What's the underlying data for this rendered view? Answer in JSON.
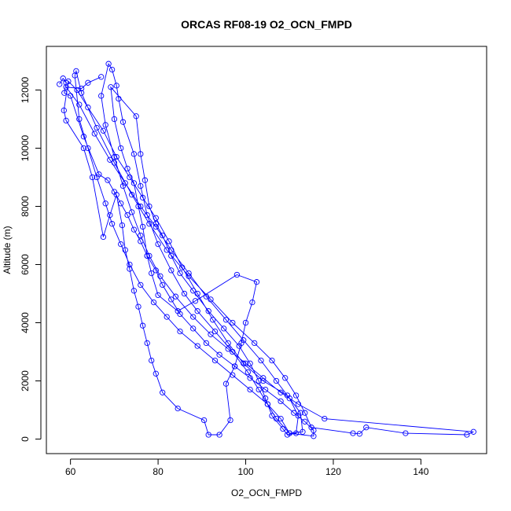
{
  "chart_data": {
    "type": "line",
    "title": "ORCAS RF08-19 O2_OCN_FMPD",
    "xlabel": "O2_OCN_FMPD",
    "ylabel": "Altitude (m)",
    "xlim": [
      54.5,
      155
    ],
    "ylim": [
      -500,
      13500
    ],
    "xticks": [
      60,
      80,
      100,
      120,
      140
    ],
    "yticks": [
      0,
      2000,
      4000,
      6000,
      8000,
      10000,
      12000
    ],
    "grid": false,
    "legend": "none",
    "series_color": "#0000ff",
    "series": [
      {
        "marker": "open-circle",
        "points": [
          [
            57.5,
            12200
          ],
          [
            58.3,
            12400
          ],
          [
            59.0,
            12250
          ],
          [
            58.6,
            11900
          ],
          [
            60.0,
            11800
          ],
          [
            63.0,
            10400
          ],
          [
            66.5,
            9100
          ],
          [
            68.5,
            8900
          ],
          [
            70.0,
            8500
          ],
          [
            71.5,
            8100
          ],
          [
            73.0,
            7700
          ],
          [
            74.5,
            7200
          ],
          [
            76.0,
            6800
          ],
          [
            77.5,
            6300
          ],
          [
            79.5,
            5800
          ],
          [
            81.0,
            5300
          ],
          [
            83.0,
            4800
          ],
          [
            85.0,
            4300
          ],
          [
            88.0,
            3800
          ],
          [
            91.0,
            3300
          ],
          [
            94.0,
            2900
          ],
          [
            97.5,
            2500
          ],
          [
            101.0,
            2100
          ],
          [
            104.5,
            1700
          ],
          [
            108.0,
            1300
          ],
          [
            111.0,
            900
          ],
          [
            113.5,
            600
          ],
          [
            115.5,
            300
          ],
          [
            115.5,
            100
          ],
          [
            110.0,
            200
          ],
          [
            108.0,
            700
          ],
          [
            105.0,
            1200
          ],
          [
            101.0,
            1700
          ],
          [
            97.0,
            2200
          ],
          [
            93.0,
            2700
          ],
          [
            89.0,
            3200
          ],
          [
            85.0,
            3700
          ],
          [
            82.0,
            4200
          ],
          [
            79.0,
            4700
          ],
          [
            76.0,
            5300
          ],
          [
            73.5,
            6000
          ],
          [
            71.5,
            6700
          ],
          [
            69.5,
            7400
          ],
          [
            68.0,
            8100
          ],
          [
            66.0,
            9000
          ],
          [
            64.0,
            10000
          ],
          [
            62.0,
            11000
          ],
          [
            61.0,
            12500
          ],
          [
            61.3,
            12650
          ],
          [
            62.5,
            11900
          ],
          [
            66.0,
            10700
          ],
          [
            70.0,
            9500
          ],
          [
            74.0,
            8400
          ],
          [
            78.0,
            7400
          ],
          [
            82.0,
            6500
          ],
          [
            87.0,
            5600
          ],
          [
            92.0,
            4800
          ],
          [
            97.0,
            4000
          ],
          [
            102.0,
            3300
          ],
          [
            106.0,
            2700
          ],
          [
            109.0,
            2100
          ],
          [
            111.5,
            1500
          ],
          [
            113.5,
            900
          ],
          [
            115.0,
            400
          ],
          [
            124.5,
            200
          ],
          [
            126.0,
            180
          ],
          [
            127.5,
            400
          ],
          [
            136.5,
            200
          ],
          [
            150.5,
            150
          ],
          [
            152.0,
            250
          ],
          [
            118.0,
            700
          ],
          [
            112.0,
            1200
          ],
          [
            108.0,
            1600
          ],
          [
            104.0,
            2100
          ],
          [
            100.0,
            2600
          ],
          [
            96.0,
            3100
          ],
          [
            92.0,
            3600
          ],
          [
            88.0,
            4200
          ],
          [
            84.0,
            4900
          ],
          [
            80.5,
            5600
          ],
          [
            78.0,
            6300
          ],
          [
            76.0,
            7000
          ],
          [
            74.0,
            7800
          ],
          [
            72.0,
            8700
          ],
          [
            70.0,
            9700
          ],
          [
            68.0,
            10800
          ],
          [
            67.0,
            11800
          ],
          [
            68.7,
            12900
          ],
          [
            69.5,
            12700
          ],
          [
            70.5,
            12150
          ],
          [
            71.0,
            11700
          ],
          [
            72.0,
            10900
          ],
          [
            74.5,
            9800
          ],
          [
            76.0,
            8700
          ],
          [
            77.5,
            7700
          ],
          [
            80.0,
            6700
          ],
          [
            83.0,
            5800
          ],
          [
            86.0,
            5000
          ],
          [
            89.0,
            4400
          ],
          [
            93.0,
            3700
          ],
          [
            97.0,
            3000
          ],
          [
            100.5,
            2300
          ],
          [
            103.0,
            1700
          ],
          [
            105.0,
            1200
          ],
          [
            107.0,
            700
          ],
          [
            110.0,
            200
          ],
          [
            113.0,
            250
          ],
          [
            112.5,
            900
          ],
          [
            109.5,
            1500
          ],
          [
            104.0,
            2000
          ],
          [
            99.5,
            2600
          ],
          [
            96.0,
            3300
          ],
          [
            92.5,
            4100
          ],
          [
            89.0,
            5000
          ],
          [
            85.5,
            5900
          ],
          [
            82.5,
            6800
          ],
          [
            79.5,
            7600
          ],
          [
            76.5,
            8300
          ],
          [
            73.5,
            9000
          ],
          [
            70.5,
            9700
          ],
          [
            67.5,
            10600
          ],
          [
            64.0,
            11400
          ],
          [
            61.5,
            12000
          ],
          [
            59.5,
            12300
          ],
          [
            58.5,
            11300
          ],
          [
            59.0,
            10950
          ],
          [
            63.0,
            10000
          ],
          [
            65.0,
            9000
          ],
          [
            67.5,
            6950
          ],
          [
            69.0,
            7700
          ],
          [
            70.5,
            8400
          ],
          [
            71.8,
            7350
          ],
          [
            72.5,
            6500
          ],
          [
            73.5,
            5850
          ],
          [
            74.5,
            5100
          ],
          [
            75.5,
            4550
          ],
          [
            76.5,
            3900
          ],
          [
            77.5,
            3300
          ],
          [
            78.5,
            2700
          ],
          [
            79.5,
            2250
          ],
          [
            81.0,
            1600
          ],
          [
            84.5,
            1050
          ],
          [
            90.5,
            650
          ],
          [
            91.5,
            150
          ],
          [
            94.0,
            150
          ],
          [
            96.5,
            650
          ],
          [
            95.5,
            1900
          ],
          [
            97.5,
            2500
          ],
          [
            99.0,
            3300
          ],
          [
            100.0,
            4000
          ],
          [
            101.5,
            4700
          ],
          [
            102.5,
            5400
          ],
          [
            98.0,
            5650
          ],
          [
            88.5,
            4750
          ],
          [
            84.5,
            4400
          ],
          [
            80.0,
            4950
          ],
          [
            78.5,
            5700
          ],
          [
            77.5,
            6300
          ],
          [
            76.5,
            7300
          ],
          [
            75.5,
            8000
          ],
          [
            74.5,
            8800
          ],
          [
            73.0,
            9300
          ],
          [
            71.5,
            10000
          ],
          [
            70.0,
            11000
          ],
          [
            69.2,
            12100
          ],
          [
            75.0,
            11100
          ],
          [
            76.0,
            9800
          ],
          [
            77.0,
            8900
          ],
          [
            78.0,
            8000
          ],
          [
            79.5,
            7400
          ],
          [
            81.0,
            7000
          ],
          [
            83.0,
            6300
          ],
          [
            85.0,
            5700
          ],
          [
            88.0,
            5100
          ],
          [
            91.5,
            4400
          ],
          [
            95.0,
            3800
          ],
          [
            98.5,
            3200
          ],
          [
            101.0,
            2600
          ],
          [
            103.0,
            2000
          ],
          [
            104.5,
            1400
          ],
          [
            106.0,
            800
          ],
          [
            108.5,
            350
          ],
          [
            109.5,
            150
          ],
          [
            111.5,
            200
          ],
          [
            112.0,
            800
          ],
          [
            110.0,
            1400
          ],
          [
            107.0,
            2000
          ],
          [
            103.5,
            2700
          ],
          [
            99.5,
            3400
          ],
          [
            95.5,
            4100
          ],
          [
            91.0,
            4900
          ],
          [
            87.0,
            5700
          ],
          [
            83.0,
            6500
          ],
          [
            79.5,
            7300
          ],
          [
            76.0,
            8000
          ],
          [
            72.5,
            8800
          ],
          [
            69.0,
            9600
          ],
          [
            65.5,
            10500
          ],
          [
            62.0,
            11500
          ],
          [
            59.0,
            12100
          ],
          [
            62.5,
            12050
          ],
          [
            64.0,
            12250
          ],
          [
            67.0,
            12450
          ]
        ]
      }
    ]
  }
}
